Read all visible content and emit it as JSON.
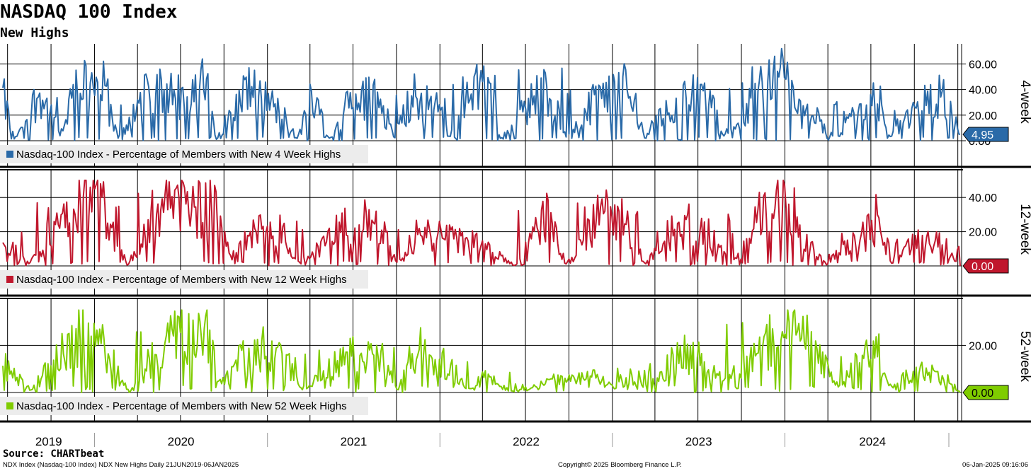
{
  "header": {
    "title": "NASDAQ 100 Index",
    "subtitle": "New Highs"
  },
  "footer": {
    "source": "Source: CHARTbeat",
    "left_note": "NDX Index (Nasdaq-100 Index) NDX New Highs  Daily 21JUN2019-06JAN2025",
    "copyright": "Copyright© 2025 Bloomberg Finance L.P.",
    "timestamp": "06-Jan-2025 09:16:06"
  },
  "chart_data": [
    {
      "type": "line",
      "panel_label": "4-week",
      "legend": "Nasdaq-100 Index - Percentage of Members with New 4 Week Highs",
      "color": "#2a6aa8",
      "last_value": 4.95,
      "last_value_label": "4.95",
      "yticks": [
        "0.00",
        "20.00",
        "40.00",
        "60.00"
      ],
      "ylim": [
        0,
        74
      ],
      "peaks": [
        {
          "date": "2019-06-21",
          "value": 44
        },
        {
          "date": "2019-07-15",
          "value": 2
        },
        {
          "date": "2019-09-10",
          "value": 48
        },
        {
          "date": "2019-10-20",
          "value": 5
        },
        {
          "date": "2019-11-20",
          "value": 52
        },
        {
          "date": "2019-12-20",
          "value": 60
        },
        {
          "date": "2020-01-20",
          "value": 50
        },
        {
          "date": "2020-02-20",
          "value": 2
        },
        {
          "date": "2020-04-10",
          "value": 40
        },
        {
          "date": "2020-06-08",
          "value": 56
        },
        {
          "date": "2020-07-15",
          "value": 30
        },
        {
          "date": "2020-08-25",
          "value": 62
        },
        {
          "date": "2020-09-15",
          "value": 3
        },
        {
          "date": "2020-11-20",
          "value": 50
        },
        {
          "date": "2020-12-28",
          "value": 40
        },
        {
          "date": "2021-01-20",
          "value": 30
        },
        {
          "date": "2021-03-05",
          "value": 2
        },
        {
          "date": "2021-04-10",
          "value": 48
        },
        {
          "date": "2021-05-12",
          "value": 4
        },
        {
          "date": "2021-07-10",
          "value": 42
        },
        {
          "date": "2021-08-25",
          "value": 40
        },
        {
          "date": "2021-09-25",
          "value": 3
        },
        {
          "date": "2021-11-05",
          "value": 43
        },
        {
          "date": "2021-12-28",
          "value": 35
        },
        {
          "date": "2022-01-20",
          "value": 4
        },
        {
          "date": "2022-03-29",
          "value": 63
        },
        {
          "date": "2022-05-12",
          "value": 2
        },
        {
          "date": "2022-08-15",
          "value": 57
        },
        {
          "date": "2022-09-25",
          "value": 3
        },
        {
          "date": "2022-11-30",
          "value": 45
        },
        {
          "date": "2022-12-28",
          "value": 40
        },
        {
          "date": "2023-01-26",
          "value": 55
        },
        {
          "date": "2023-03-10",
          "value": 5
        },
        {
          "date": "2023-05-25",
          "value": 44
        },
        {
          "date": "2023-07-15",
          "value": 50
        },
        {
          "date": "2023-08-25",
          "value": 4
        },
        {
          "date": "2023-11-20",
          "value": 58
        },
        {
          "date": "2023-12-28",
          "value": 68
        },
        {
          "date": "2024-01-25",
          "value": 30
        },
        {
          "date": "2024-04-20",
          "value": 3
        },
        {
          "date": "2024-06-10",
          "value": 35
        },
        {
          "date": "2024-07-15",
          "value": 43
        },
        {
          "date": "2024-08-05",
          "value": 5
        },
        {
          "date": "2024-10-20",
          "value": 38
        },
        {
          "date": "2024-12-05",
          "value": 44
        },
        {
          "date": "2025-01-06",
          "value": 4.95
        }
      ]
    },
    {
      "type": "line",
      "panel_label": "12-week",
      "legend": "Nasdaq-100 Index - Percentage of Members with New 12 Week Highs",
      "color": "#c0172d",
      "last_value": 0.0,
      "last_value_label": "0.00",
      "yticks": [
        "20.00",
        "40.00"
      ],
      "ylim": [
        0,
        52
      ],
      "peaks": [
        {
          "date": "2019-06-21",
          "value": 20
        },
        {
          "date": "2019-08-15",
          "value": 2
        },
        {
          "date": "2019-11-15",
          "value": 38
        },
        {
          "date": "2019-12-20",
          "value": 50
        },
        {
          "date": "2020-01-20",
          "value": 40
        },
        {
          "date": "2020-03-10",
          "value": 1
        },
        {
          "date": "2020-06-10",
          "value": 50
        },
        {
          "date": "2020-08-20",
          "value": 42
        },
        {
          "date": "2020-09-05",
          "value": 45
        },
        {
          "date": "2020-10-15",
          "value": 5
        },
        {
          "date": "2020-12-20",
          "value": 30
        },
        {
          "date": "2021-03-10",
          "value": 2
        },
        {
          "date": "2021-06-20",
          "value": 32
        },
        {
          "date": "2021-08-25",
          "value": 30
        },
        {
          "date": "2021-10-05",
          "value": 2
        },
        {
          "date": "2021-11-15",
          "value": 25
        },
        {
          "date": "2021-12-28",
          "value": 22
        },
        {
          "date": "2022-03-29",
          "value": 15
        },
        {
          "date": "2022-06-10",
          "value": 0
        },
        {
          "date": "2022-08-10",
          "value": 35
        },
        {
          "date": "2022-08-15",
          "value": 36
        },
        {
          "date": "2022-09-25",
          "value": 1
        },
        {
          "date": "2022-12-10",
          "value": 38
        },
        {
          "date": "2023-01-15",
          "value": 39
        },
        {
          "date": "2023-03-10",
          "value": 2
        },
        {
          "date": "2023-06-15",
          "value": 31
        },
        {
          "date": "2023-09-15",
          "value": 3
        },
        {
          "date": "2023-12-20",
          "value": 50
        },
        {
          "date": "2024-01-15",
          "value": 40
        },
        {
          "date": "2024-03-20",
          "value": 3
        },
        {
          "date": "2024-06-20",
          "value": 22
        },
        {
          "date": "2024-07-15",
          "value": 35
        },
        {
          "date": "2024-08-05",
          "value": 2
        },
        {
          "date": "2024-10-15",
          "value": 20
        },
        {
          "date": "2024-12-05",
          "value": 15
        },
        {
          "date": "2025-01-06",
          "value": 0
        }
      ]
    },
    {
      "type": "line",
      "panel_label": "52-week",
      "legend": "Nasdaq-100 Index - Percentage of Members with New 52 Week Highs",
      "color": "#7fcc00",
      "last_value": 0.0,
      "last_value_label": "0.00",
      "yticks": [
        "20.00"
      ],
      "ylim": [
        0,
        37
      ],
      "peaks": [
        {
          "date": "2019-06-21",
          "value": 15
        },
        {
          "date": "2019-08-20",
          "value": 1
        },
        {
          "date": "2019-11-20",
          "value": 30
        },
        {
          "date": "2019-12-28",
          "value": 31
        },
        {
          "date": "2020-02-05",
          "value": 20
        },
        {
          "date": "2020-03-15",
          "value": 0
        },
        {
          "date": "2020-06-10",
          "value": 26
        },
        {
          "date": "2020-09-01",
          "value": 36
        },
        {
          "date": "2020-09-20",
          "value": 5
        },
        {
          "date": "2020-12-20",
          "value": 25
        },
        {
          "date": "2021-02-10",
          "value": 20
        },
        {
          "date": "2021-03-10",
          "value": 2
        },
        {
          "date": "2021-06-25",
          "value": 20
        },
        {
          "date": "2021-08-20",
          "value": 22
        },
        {
          "date": "2021-10-05",
          "value": 2
        },
        {
          "date": "2021-11-15",
          "value": 23
        },
        {
          "date": "2021-12-28",
          "value": 18
        },
        {
          "date": "2022-03-15",
          "value": 1
        },
        {
          "date": "2022-03-29",
          "value": 9
        },
        {
          "date": "2022-06-10",
          "value": 0
        },
        {
          "date": "2022-08-15",
          "value": 5
        },
        {
          "date": "2022-11-30",
          "value": 8
        },
        {
          "date": "2022-12-28",
          "value": 3
        },
        {
          "date": "2023-04-15",
          "value": 12
        },
        {
          "date": "2023-06-15",
          "value": 22
        },
        {
          "date": "2023-08-25",
          "value": 5
        },
        {
          "date": "2023-12-15",
          "value": 30
        },
        {
          "date": "2024-01-10",
          "value": 36
        },
        {
          "date": "2024-02-20",
          "value": 27
        },
        {
          "date": "2024-04-20",
          "value": 4
        },
        {
          "date": "2024-06-10",
          "value": 18
        },
        {
          "date": "2024-07-15",
          "value": 24
        },
        {
          "date": "2024-08-05",
          "value": 4
        },
        {
          "date": "2024-10-20",
          "value": 12
        },
        {
          "date": "2024-12-05",
          "value": 8
        },
        {
          "date": "2025-01-06",
          "value": 0
        }
      ]
    }
  ],
  "x_axis": {
    "range": [
      "2019-06-21",
      "2025-01-06"
    ],
    "year_labels": [
      "2019",
      "2020",
      "2021",
      "2022",
      "2023",
      "2024"
    ]
  }
}
